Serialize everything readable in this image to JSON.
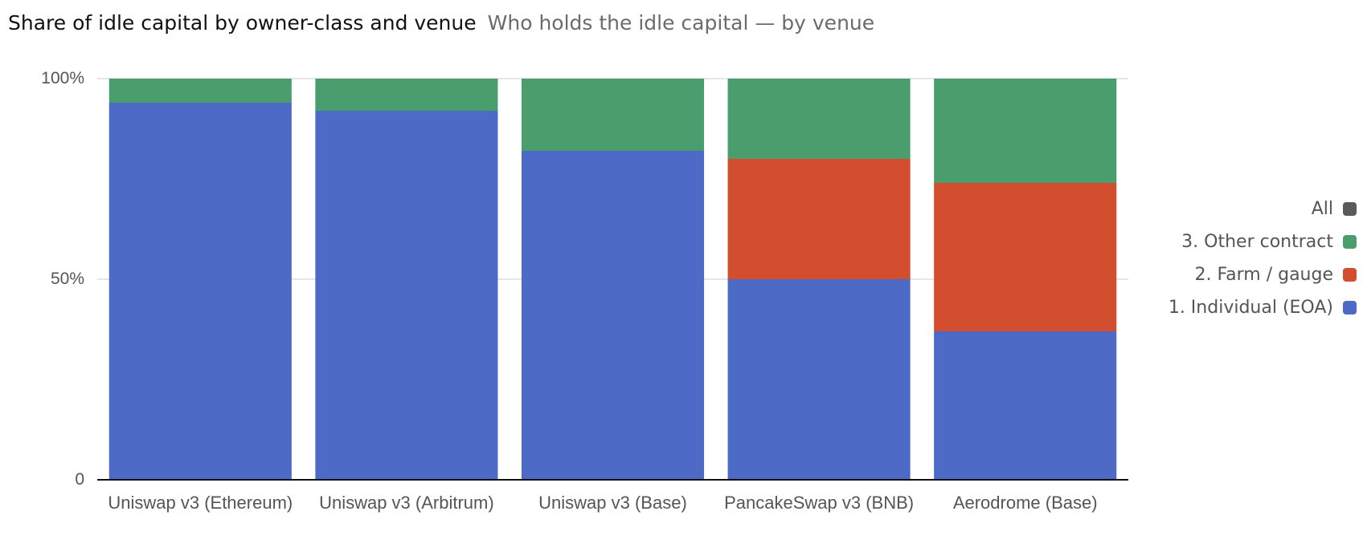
{
  "chart_data": {
    "type": "stacked-bar-100",
    "title": "Share of idle capital by owner-class and venue",
    "subtitle": "Who holds the idle capital — by venue",
    "categories": [
      "Uniswap v3 (Ethereum)",
      "Uniswap v3 (Arbitrum)",
      "Uniswap v3 (Base)",
      "PancakeSwap v3 (BNB)",
      "Aerodrome (Base)"
    ],
    "series": [
      {
        "name": "1. Individual (EOA)",
        "color": "#4c6ac6",
        "values": [
          94,
          92,
          82,
          50,
          37
        ]
      },
      {
        "name": "2. Farm / gauge",
        "color": "#d34e2f",
        "values": [
          0,
          0,
          0,
          30,
          37
        ]
      },
      {
        "name": "3. Other contract",
        "color": "#4a9e6e",
        "values": [
          6,
          8,
          18,
          20,
          26
        ]
      }
    ],
    "legend_all": {
      "label": "All",
      "color": "#5a5a5a"
    },
    "ylim": [
      0,
      100
    ],
    "yticks": [
      0,
      {
        "value": 50,
        "label": "50%"
      },
      {
        "value": 100,
        "label": "100%"
      }
    ],
    "grid": true,
    "legend_position": "right"
  }
}
